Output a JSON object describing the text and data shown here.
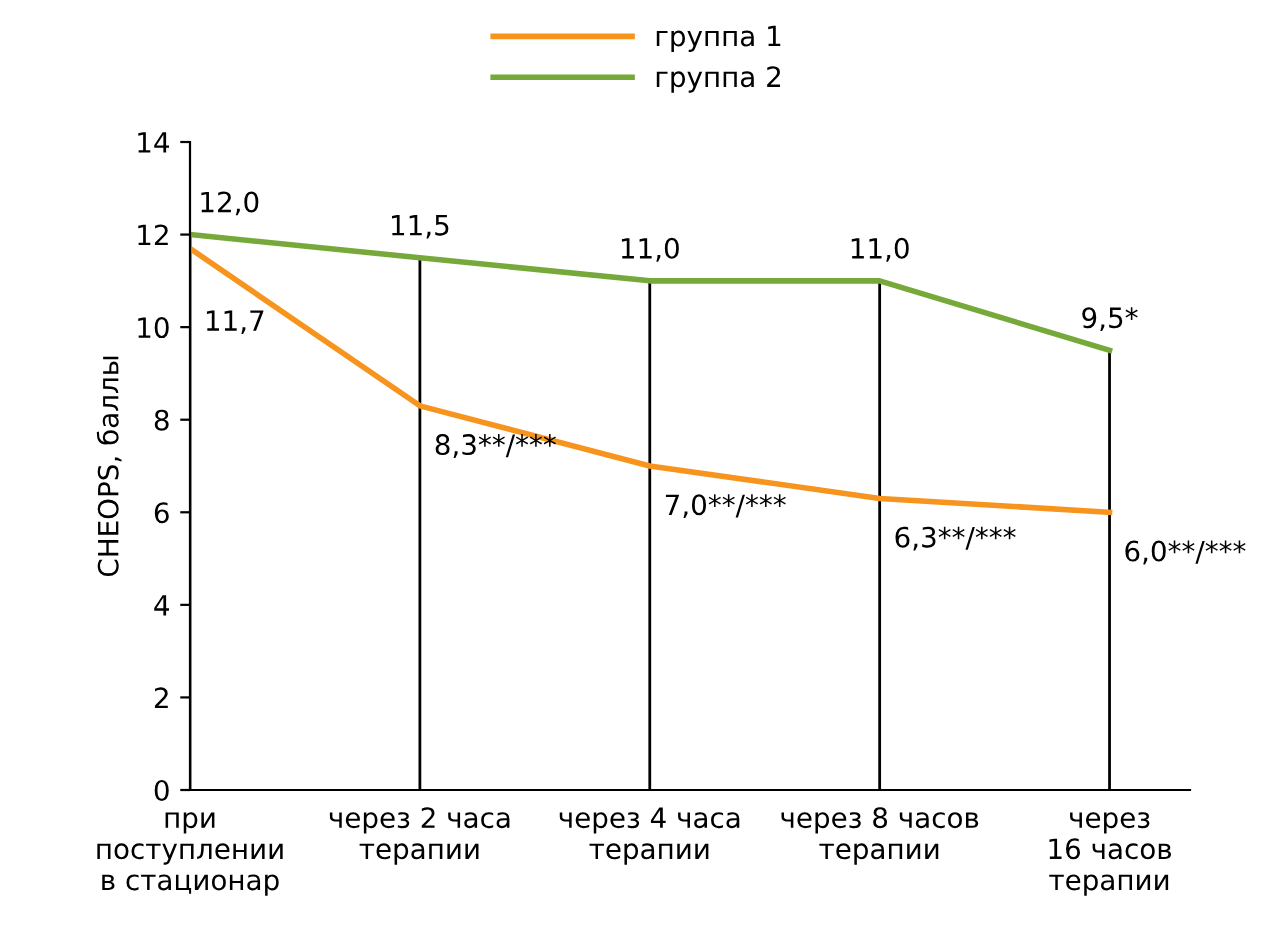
{
  "chart_data": {
    "type": "line",
    "ylabel": "CHEOPS, баллы",
    "categories": [
      "при\nпоступлении\nв стационар",
      "через 2 часа\nтерапии",
      "через 4 часа\nтерапии",
      "через 8 часов\nтерапии",
      "через\n16 часов\nтерапии"
    ],
    "series": [
      {
        "name": "группа 1",
        "color": "#f7941d",
        "values": [
          11.7,
          8.3,
          7.0,
          6.3,
          6.0
        ],
        "value_labels": [
          "11,7",
          "8,3**/***",
          "7,0**/***",
          "6,3**/***",
          "6,0**/***"
        ]
      },
      {
        "name": "группа 2",
        "color": "#77a83a",
        "values": [
          12.0,
          11.5,
          11.0,
          11.0,
          9.5
        ],
        "value_labels": [
          "12,0",
          "11,5",
          "11,0",
          "11,0",
          "9,5*"
        ]
      }
    ],
    "ylim": [
      0,
      14
    ],
    "yticks": [
      0,
      2,
      4,
      6,
      8,
      10,
      12,
      14
    ],
    "grid": "x",
    "legend": "top",
    "marker": "none",
    "line_style": "solid"
  }
}
